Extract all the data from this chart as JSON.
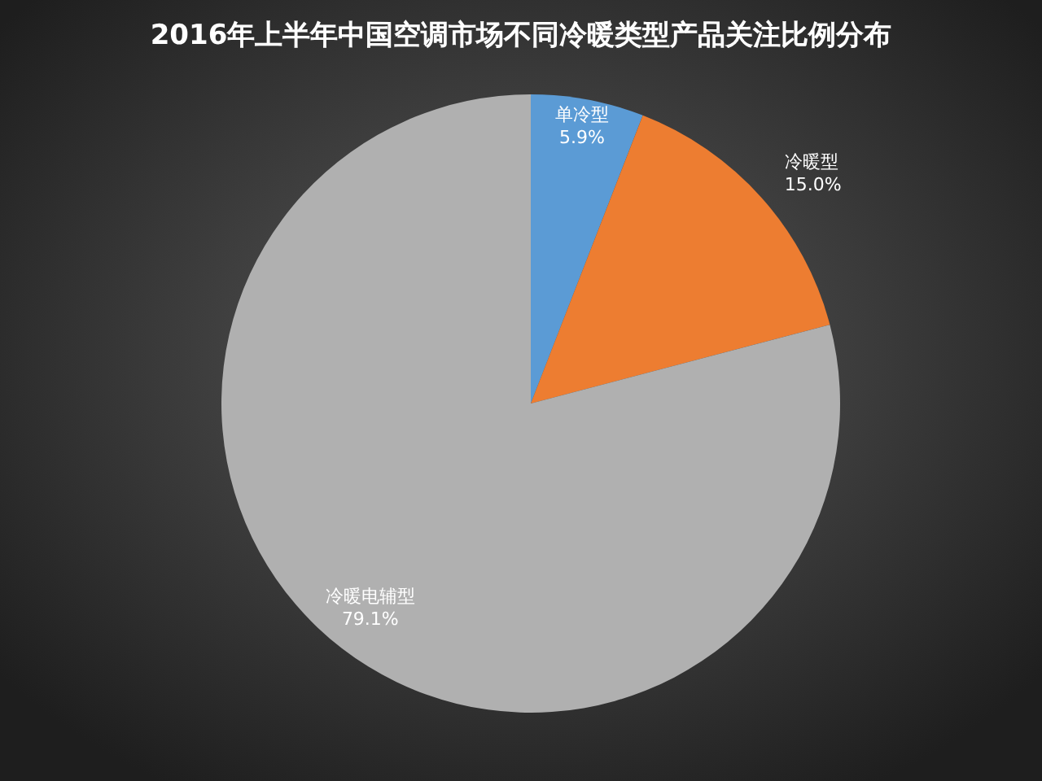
{
  "chart_data": {
    "type": "pie",
    "title": "2016年上半年中国空调市场不同冷暖类型产品关注比例分布",
    "categories": [
      "单冷型",
      "冷暖型",
      "冷暖电辅型"
    ],
    "values": [
      5.9,
      15.0,
      79.1
    ],
    "value_labels": [
      "5.9%",
      "15.0%",
      "79.1%"
    ],
    "colors": [
      "#5b9bd5",
      "#ed7d31",
      "#b0b0b0"
    ]
  }
}
